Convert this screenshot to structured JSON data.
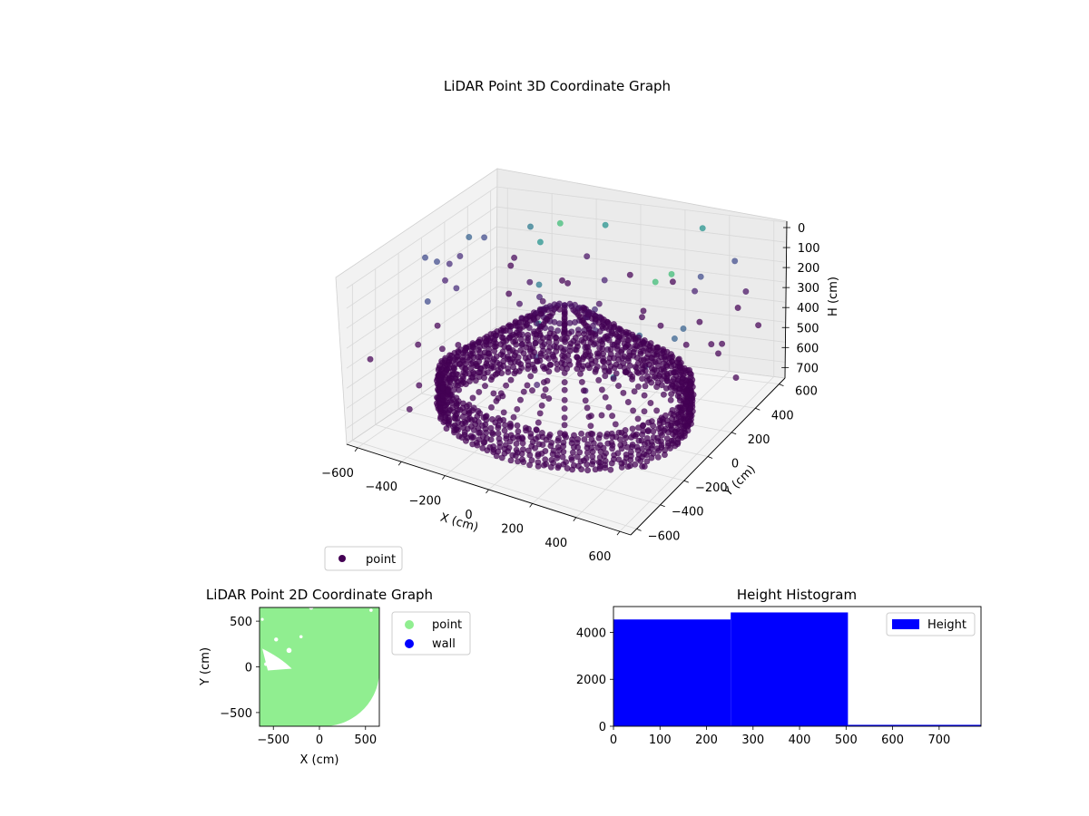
{
  "colors": {
    "point_3d_legend": "#440154",
    "point_2d": "#90ee90",
    "wall_2d": "#0000ff",
    "hist_bar": "#0000ff",
    "viridis_low": "#440154",
    "viridis_mid": "#3b528b",
    "viridis_high": "#5ec962"
  },
  "chart_data": [
    {
      "id": "lidar-3d",
      "type": "scatter",
      "title": "LiDAR Point 3D Coordinate Graph",
      "xlabel": "X (cm)",
      "ylabel": "Y (cm)",
      "zlabel": "H (cm)",
      "xlim": [
        -650,
        650
      ],
      "ylim": [
        -650,
        650
      ],
      "zlim": [
        0,
        780
      ],
      "z_inverted": true,
      "xticks": [
        "−600",
        "−400",
        "−200",
        "0",
        "200",
        "400",
        "600"
      ],
      "yticks": [
        "−600",
        "−400",
        "−200",
        "0",
        "200",
        "400",
        "600"
      ],
      "zticks": [
        "0",
        "100",
        "200",
        "300",
        "400",
        "500",
        "600",
        "700"
      ],
      "grid": true,
      "legend": {
        "position": "lower-left",
        "entries": [
          "point"
        ]
      },
      "colormap": "viridis",
      "series": [
        {
          "name": "point",
          "shape": "ring with radial arcs",
          "radius_cm": 520,
          "height_range_cm": [
            0,
            780
          ]
        }
      ]
    },
    {
      "id": "lidar-2d",
      "type": "scatter",
      "title": "LiDAR Point 2D Coordinate Graph",
      "xlabel": "X (cm)",
      "ylabel": "Y (cm)",
      "xlim": [
        -650,
        650
      ],
      "ylim": [
        -650,
        650
      ],
      "xticks": [
        "−500",
        "0",
        "500"
      ],
      "yticks": [
        "−500",
        "0",
        "500"
      ],
      "legend": {
        "position": "outside-right",
        "entries": [
          "point",
          "wall"
        ]
      },
      "series": [
        {
          "name": "point",
          "extent_cm": {
            "x": [
              -650,
              650
            ],
            "y": [
              -650,
              650
            ]
          }
        },
        {
          "name": "wall",
          "count": 0
        }
      ]
    },
    {
      "id": "height-histogram",
      "type": "bar",
      "title": "Height Histogram",
      "xlim": [
        0,
        790
      ],
      "ylim": [
        0,
        5100
      ],
      "xticks": [
        "0",
        "100",
        "200",
        "300",
        "400",
        "500",
        "600",
        "700"
      ],
      "yticks": [
        "0",
        "2000",
        "4000"
      ],
      "legend": {
        "position": "upper-right",
        "entries": [
          "Height"
        ]
      },
      "bins": [
        {
          "start": 0,
          "end": 252,
          "count": 4550
        },
        {
          "start": 252,
          "end": 504,
          "count": 4850
        },
        {
          "start": 504,
          "end": 790,
          "count": 60
        }
      ]
    }
  ]
}
